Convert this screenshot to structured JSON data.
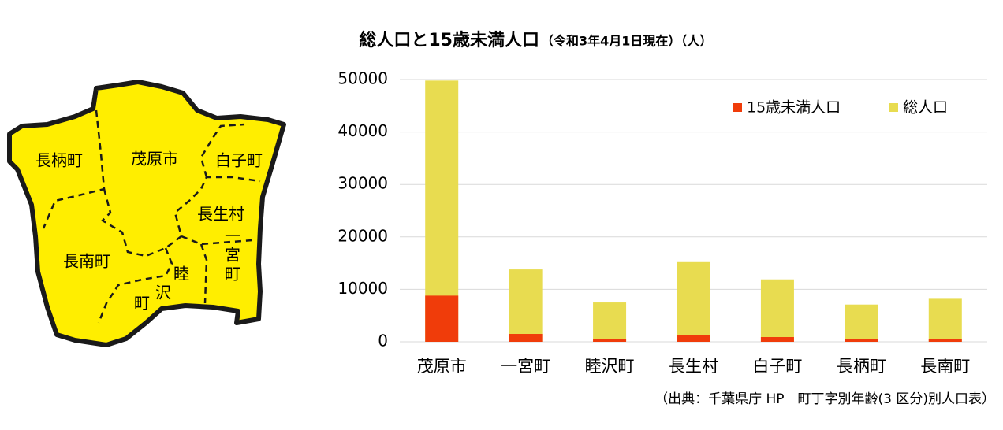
{
  "map": {
    "labels": [
      "長柄町",
      "茂原市",
      "白子町",
      "長生村",
      "長南町",
      "一宮町"
    ],
    "mutsuzawa": [
      "睦",
      "沢",
      "町"
    ]
  },
  "chart_data": {
    "type": "bar",
    "title": "総人口と15歳未満人口",
    "subtitle": "（令和3年4月1日現在）（人）",
    "categories": [
      "茂原市",
      "一宮町",
      "睦沢町",
      "長生村",
      "白子町",
      "長柄町",
      "長南町"
    ],
    "series": [
      {
        "name": "15歳未満人口",
        "color": "#f03c0a",
        "values": [
          8800,
          1500,
          600,
          1300,
          900,
          500,
          600
        ]
      },
      {
        "name": "総人口",
        "color": "#e8dc50",
        "values": [
          49800,
          13800,
          7500,
          15200,
          11900,
          7100,
          8200
        ]
      }
    ],
    "ylim": [
      0,
      50000
    ],
    "yticks": [
      0,
      10000,
      20000,
      30000,
      40000,
      50000
    ],
    "grid": true,
    "legend": "top-right",
    "source": "（出典：千葉県庁 HP　町丁字別年齢(3 区分)別人口表）"
  }
}
